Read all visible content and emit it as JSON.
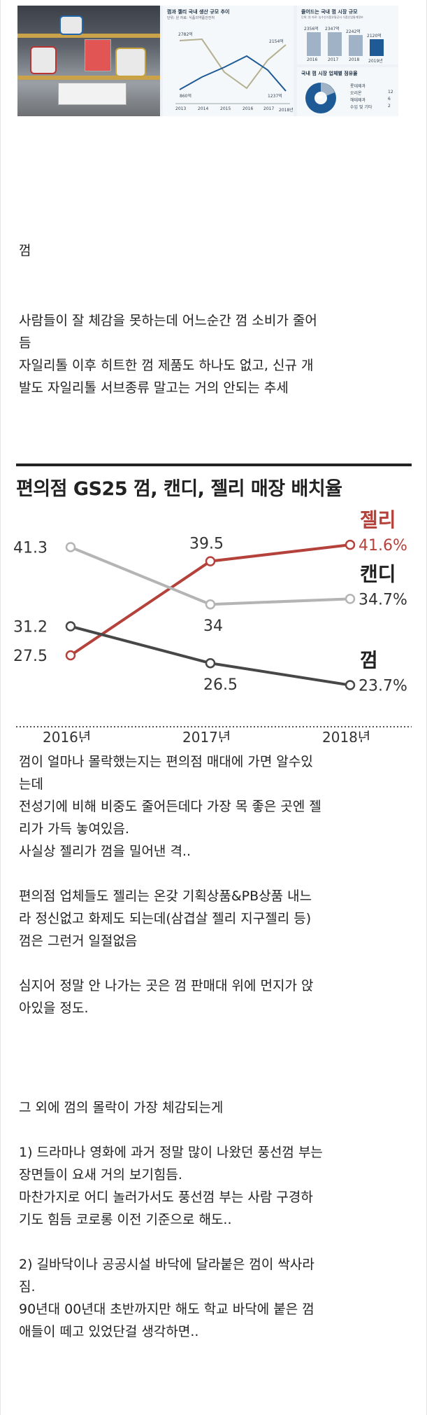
{
  "news_image": {
    "panel1": {
      "title": "껌과 젤리 국내 생산 규모 추이",
      "unit": "단위: 원 자료: 식품의약품안전처",
      "labels": [
        "2782억",
        "2154억",
        "1237억",
        "860억"
      ],
      "years": [
        "2013",
        "2014",
        "2015",
        "2016",
        "2017",
        "2018년"
      ]
    },
    "panel2": {
      "title": "줄어드는 국내 껌 시장 규모",
      "unit": "단위: 원 자료: 농수산식품유통공사 식품산업통계정보",
      "bars": [
        {
          "label": "2356억",
          "year": "2016"
        },
        {
          "label": "2347억",
          "year": "2017"
        },
        {
          "label": "2242억",
          "year": "2018"
        },
        {
          "label": "2120억",
          "year": "2019년"
        }
      ]
    },
    "panel3": {
      "title": "국내 껌 시장 업체별 점유율",
      "center": "80",
      "legend": [
        {
          "name": "롯데제과",
          "value": ""
        },
        {
          "name": "오리온",
          "value": "12"
        },
        {
          "name": "해태제과",
          "value": "6"
        },
        {
          "name": "수입 및 기타",
          "value": "2"
        }
      ]
    }
  },
  "paragraphs": {
    "p1": "껌",
    "p2": "사람들이 잘 체감을 못하는데 어느순간 껌 소비가 줄어\n듬\n자일리톨 이후 히트한 껌 제품도 하나도 없고, 신규 개\n발도 자일리톨 서브종류 말고는 거의 안되는 추세",
    "p3": "껌이 얼마나 몰락했는지는 편의점 매대에 가면 알수있\n는데\n전성기에 비해 비중도 줄어든데다 가장 목 좋은 곳엔 젤\n리가 가득 놓여있음.\n사실상 젤리가 껌을 밀어낸 격..\n\n편의점 업체들도 젤리는 온갖 기획상품&PB상품 내느\n라 정신없고 화제도 되는데(삼겹살 젤리 지구젤리 등)\n껌은 그런거 일절없음\n\n심지어 정말 안 나가는 곳은 껌 판매대 위에 먼지가 앉\n아있을 정도.",
    "p4": "그 외에 껌의 몰락이 가장 체감되는게\n\n1) 드라마나 영화에 과거 정말 많이 나왔던 풍선껌 부는\n장면들이 요새 거의 보기힘듬.\n마찬가지로 어디 놀러가서도 풍선껌 부는 사람 구경하\n기도 힘듬 코로롱 이전 기준으로 해도..\n\n2) 길바닥이나 공공시설 바닥에 달라붙은 껌이 싹사라\n짐.\n90년대 00년대 초반까지만 해도 학교 바닥에 붙은 껌\n애들이 떼고 있었단걸 생각하면.."
  },
  "chart_data": {
    "type": "line",
    "title": "편의점 GS25 껌, 캔디, 젤리 매장 배치율",
    "categories": [
      "2016년",
      "2017년",
      "2018년"
    ],
    "series": [
      {
        "name": "젤리",
        "values": [
          27.5,
          39.5,
          41.6
        ],
        "color": "#b5413b",
        "labels": [
          "27.5",
          "39.5",
          "41.6%"
        ]
      },
      {
        "name": "캔디",
        "values": [
          41.3,
          34,
          34.7
        ],
        "color": "#b4b4b4",
        "labels": [
          "41.3",
          "34",
          "34.7%"
        ]
      },
      {
        "name": "껌",
        "values": [
          31.2,
          26.5,
          23.7
        ],
        "color": "#474747",
        "labels": [
          "31.2",
          "26.5",
          "23.7%"
        ]
      }
    ],
    "ylim": [
      20,
      45
    ],
    "grid": false,
    "legend": "inline-right"
  }
}
